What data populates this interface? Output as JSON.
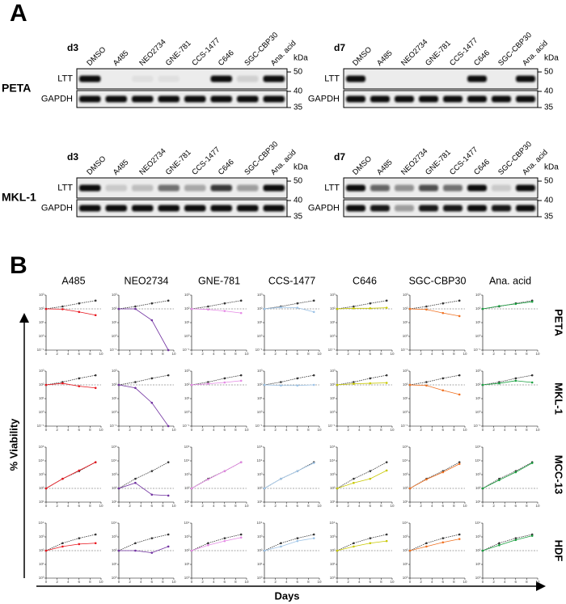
{
  "panel_a": {
    "label": "A",
    "unit": "kDa",
    "markers": [
      50,
      40,
      35
    ],
    "row_labels": [
      "LTT",
      "GAPDH"
    ],
    "lanes": [
      "DMSO",
      "A485",
      "NEO2734",
      "GNE-781",
      "CCS-1477",
      "C646",
      "SGC-CBP30",
      "Ana. acid"
    ],
    "rows": [
      {
        "cell_line": "PETA",
        "days": [
          "d3",
          "d7"
        ]
      },
      {
        "cell_line": "MKL-1",
        "days": [
          "d3",
          "d7"
        ]
      }
    ]
  },
  "panel_b": {
    "label": "B",
    "y_axis_label": "% Viability",
    "x_axis_label": "Days",
    "log_scale": true,
    "x": [
      0,
      3,
      6,
      9
    ],
    "xlim": [
      0,
      10
    ],
    "xticks": [
      0,
      2,
      4,
      6,
      8,
      10
    ],
    "reference": 100,
    "control_color": "#333333",
    "columns": [
      {
        "name": "A485",
        "color": "#e8141c"
      },
      {
        "name": "NEO2734",
        "color": "#7030a0"
      },
      {
        "name": "GNE-781",
        "color": "#e58ae5"
      },
      {
        "name": "CCS-1477",
        "color": "#9dc3e6"
      },
      {
        "name": "C646",
        "color": "#c8c800"
      },
      {
        "name": "SGC-CBP30",
        "color": "#f07020"
      },
      {
        "name": "Ana. acid",
        "color": "#1aa040"
      }
    ],
    "rows": [
      {
        "name": "PETA",
        "ylim": [
          0.1,
          1000
        ],
        "yticks": [
          {
            "value": 0.1,
            "label": "10⁻¹"
          },
          {
            "value": 1,
            "label": "10⁰"
          },
          {
            "value": 10,
            "label": "10¹"
          },
          {
            "value": 100,
            "label": "10²"
          },
          {
            "value": 1000,
            "label": "10³"
          }
        ],
        "control": [
          100,
          150,
          250,
          400
        ],
        "cells": [
          [
            100,
            95,
            60,
            35
          ],
          [
            100,
            100,
            15,
            0.1
          ],
          [
            100,
            90,
            70,
            50
          ],
          [
            100,
            130,
            120,
            60
          ],
          [
            100,
            110,
            110,
            120
          ],
          [
            100,
            90,
            50,
            30
          ],
          [
            100,
            160,
            230,
            330
          ]
        ]
      },
      {
        "name": "MKL-1",
        "ylim": [
          0.1,
          1000
        ],
        "yticks": [
          {
            "value": 0.1,
            "label": "10⁻¹"
          },
          {
            "value": 1,
            "label": "10⁰"
          },
          {
            "value": 10,
            "label": "10¹"
          },
          {
            "value": 100,
            "label": "10²"
          },
          {
            "value": 1000,
            "label": "10³"
          }
        ],
        "control": [
          100,
          160,
          300,
          500
        ],
        "cells": [
          [
            100,
            130,
            80,
            60
          ],
          [
            100,
            60,
            5,
            0.1
          ],
          [
            100,
            120,
            150,
            200
          ],
          [
            100,
            90,
            90,
            100
          ],
          [
            100,
            120,
            130,
            140
          ],
          [
            100,
            90,
            40,
            20
          ],
          [
            100,
            130,
            200,
            150
          ]
        ]
      },
      {
        "name": "MCC-13",
        "ylim": [
          10,
          100000
        ],
        "yticks": [
          {
            "value": 10,
            "label": "10¹"
          },
          {
            "value": 100,
            "label": "10²"
          },
          {
            "value": 1000,
            "label": "10³"
          },
          {
            "value": 10000,
            "label": "10⁴"
          },
          {
            "value": 100000,
            "label": "10⁵"
          }
        ],
        "control": [
          100,
          500,
          1800,
          8000
        ],
        "cells": [
          [
            100,
            500,
            2000,
            8000
          ],
          [
            100,
            250,
            35,
            30
          ],
          [
            100,
            450,
            1800,
            8000
          ],
          [
            100,
            500,
            1800,
            7000
          ],
          [
            100,
            250,
            500,
            2000
          ],
          [
            100,
            450,
            1500,
            6000
          ],
          [
            100,
            400,
            1500,
            7000
          ]
        ]
      },
      {
        "name": "HDF",
        "ylim": [
          1,
          10000
        ],
        "yticks": [
          {
            "value": 1,
            "label": "10⁰"
          },
          {
            "value": 10,
            "label": "10¹"
          },
          {
            "value": 100,
            "label": "10²"
          },
          {
            "value": 1000,
            "label": "10³"
          },
          {
            "value": 10000,
            "label": "10⁴"
          }
        ],
        "control": [
          100,
          350,
          800,
          1500
        ],
        "cells": [
          [
            100,
            200,
            300,
            350
          ],
          [
            100,
            100,
            70,
            200
          ],
          [
            100,
            250,
            500,
            900
          ],
          [
            100,
            200,
            500,
            800
          ],
          [
            100,
            200,
            350,
            500
          ],
          [
            100,
            200,
            400,
            700
          ],
          [
            100,
            250,
            600,
            1200
          ]
        ]
      }
    ]
  }
}
